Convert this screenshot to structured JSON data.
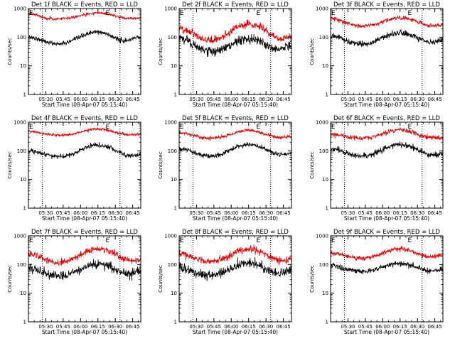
{
  "colors": {
    "events": "#000000",
    "lld": "#dd0000",
    "axes": "#000000",
    "background": "#ffffff"
  },
  "chart_data": [
    {
      "type": "line",
      "title": "Det 1f BLACK = Events, RED = LLD",
      "xlabel": "Start Time (08-Apr-07 05:15:40)",
      "ylabel": "Counts/sec",
      "x_ticks": [
        "05:30",
        "05:45",
        "06:00",
        "06:15",
        "06:30",
        "06:45"
      ],
      "x_tick_min": [
        15,
        30,
        45,
        60,
        75,
        90
      ],
      "xlim_min": [
        0,
        97
      ],
      "y_scale": "log",
      "ylim": [
        1,
        1000
      ],
      "y_ticks": [
        "1",
        "10",
        "100",
        "1000"
      ],
      "vlines_min": [
        12,
        79
      ],
      "markers": [
        {
          "label": "E",
          "min": 0
        },
        {
          "label": "E",
          "min": 66
        }
      ],
      "series": [
        {
          "name": "Events",
          "color": "black",
          "params": {
            "base": 55,
            "bumps": [
              [
                0,
                100,
                10
              ],
              [
                59,
                150,
                12
              ],
              [
                95,
                100,
                6
              ]
            ],
            "noise": 0.04
          }
        },
        {
          "name": "LLD",
          "color": "red",
          "params": {
            "base": 430,
            "bumps": [
              [
                2,
                650,
                6
              ],
              [
                59,
                700,
                12
              ],
              [
                97,
                460,
                5
              ]
            ],
            "noise": 0.025
          }
        }
      ]
    },
    {
      "type": "line",
      "title": "Det 2f BLACK = Events, RED = LLD",
      "xlabel": "Start Time (08-Apr-07 05:15:40)",
      "ylabel": "Counts/sec",
      "x_ticks": [
        "05:30",
        "05:45",
        "06:00",
        "06:15",
        "06:30",
        "06:45"
      ],
      "x_tick_min": [
        15,
        30,
        45,
        60,
        75,
        90
      ],
      "xlim_min": [
        0,
        97
      ],
      "y_scale": "log",
      "ylim": [
        1,
        1000
      ],
      "y_ticks": [
        "1",
        "10",
        "100",
        "1000"
      ],
      "vlines_min": [
        12,
        79
      ],
      "markers": [
        {
          "label": "E",
          "min": 0
        },
        {
          "label": "E",
          "min": 66
        }
      ],
      "series": [
        {
          "name": "Events",
          "color": "black",
          "params": {
            "base": 28,
            "bumps": [
              [
                0,
                90,
                10
              ],
              [
                60,
                90,
                12
              ],
              [
                97,
                55,
                5
              ]
            ],
            "noise": 0.08
          }
        },
        {
          "name": "LLD",
          "color": "red",
          "params": {
            "base": 70,
            "bumps": [
              [
                0,
                200,
                10
              ],
              [
                60,
                280,
                12
              ],
              [
                97,
                100,
                5
              ]
            ],
            "noise": 0.06
          }
        }
      ]
    },
    {
      "type": "line",
      "title": "Det 3f BLACK = Events, RED = LLD",
      "xlabel": "Start Time (08-Apr-07 05:15:40)",
      "ylabel": "Counts/sec",
      "x_ticks": [
        "05:30",
        "05:45",
        "06:00",
        "06:15",
        "06:30",
        "06:45"
      ],
      "x_tick_min": [
        15,
        30,
        45,
        60,
        75,
        90
      ],
      "xlim_min": [
        0,
        97
      ],
      "y_scale": "log",
      "ylim": [
        1,
        1000
      ],
      "y_ticks": [
        "1",
        "10",
        "100",
        "1000"
      ],
      "vlines_min": [
        12,
        79
      ],
      "markers": [
        {
          "label": "E",
          "min": 0
        },
        {
          "label": "E",
          "min": 66
        }
      ],
      "series": [
        {
          "name": "Events",
          "color": "black",
          "params": {
            "base": 55,
            "bumps": [
              [
                0,
                110,
                10
              ],
              [
                60,
                140,
                12
              ],
              [
                97,
                75,
                5
              ]
            ],
            "noise": 0.05
          }
        },
        {
          "name": "LLD",
          "color": "red",
          "params": {
            "base": 230,
            "bumps": [
              [
                0,
                450,
                10
              ],
              [
                60,
                480,
                12
              ],
              [
                97,
                260,
                5
              ]
            ],
            "noise": 0.035
          }
        }
      ]
    },
    {
      "type": "line",
      "title": "Det 4f BLACK = Events, RED = LLD",
      "xlabel": "Start Time (08-Apr-07 05:15:40)",
      "ylabel": "Counts/sec",
      "x_ticks": [
        "05:30",
        "05:45",
        "06:00",
        "06:15",
        "06:30",
        "06:45"
      ],
      "x_tick_min": [
        15,
        30,
        45,
        60,
        75,
        90
      ],
      "xlim_min": [
        0,
        97
      ],
      "y_scale": "log",
      "ylim": [
        1,
        1000
      ],
      "y_ticks": [
        "1",
        "10",
        "100",
        "1000"
      ],
      "vlines_min": [
        12,
        79
      ],
      "markers": [
        {
          "label": "E",
          "min": 0
        },
        {
          "label": "E",
          "min": 66
        }
      ],
      "series": [
        {
          "name": "Events",
          "color": "black",
          "params": {
            "base": 60,
            "bumps": [
              [
                0,
                100,
                10
              ],
              [
                60,
                160,
                12
              ],
              [
                97,
                75,
                5
              ]
            ],
            "noise": 0.04
          }
        },
        {
          "name": "LLD",
          "color": "red",
          "params": {
            "base": 340,
            "bumps": [
              [
                0,
                480,
                10
              ],
              [
                60,
                580,
                12
              ],
              [
                97,
                380,
                5
              ]
            ],
            "noise": 0.025
          }
        }
      ]
    },
    {
      "type": "line",
      "title": "Det 5f BLACK = Events, RED = LLD",
      "xlabel": "Start Time (08-Apr-07 05:15:40)",
      "ylabel": "Counts/sec",
      "x_ticks": [
        "05:30",
        "05:45",
        "06:00",
        "06:15",
        "06:30",
        "06:45"
      ],
      "x_tick_min": [
        15,
        30,
        45,
        60,
        75,
        90
      ],
      "xlim_min": [
        0,
        97
      ],
      "y_scale": "log",
      "ylim": [
        1,
        1000
      ],
      "y_ticks": [
        "1",
        "10",
        "100",
        "1000"
      ],
      "vlines_min": [
        12,
        79
      ],
      "markers": [
        {
          "label": "E",
          "min": 0
        },
        {
          "label": "E",
          "min": 66
        }
      ],
      "series": [
        {
          "name": "Events",
          "color": "black",
          "params": {
            "base": 62,
            "bumps": [
              [
                0,
                120,
                10
              ],
              [
                60,
                170,
                12
              ],
              [
                97,
                80,
                5
              ]
            ],
            "noise": 0.04
          }
        },
        {
          "name": "LLD",
          "color": "red",
          "params": {
            "base": 270,
            "bumps": [
              [
                0,
                420,
                10
              ],
              [
                60,
                520,
                12
              ],
              [
                97,
                310,
                5
              ]
            ],
            "noise": 0.03
          }
        }
      ]
    },
    {
      "type": "line",
      "title": "Det 6f BLACK = Events, RED = LLD",
      "xlabel": "Start Time (08-Apr-07 05:15:40)",
      "ylabel": "Counts/sec",
      "x_ticks": [
        "05:30",
        "05:45",
        "06:00",
        "06:15",
        "06:30",
        "06:45"
      ],
      "x_tick_min": [
        15,
        30,
        45,
        60,
        75,
        90
      ],
      "xlim_min": [
        0,
        97
      ],
      "y_scale": "log",
      "ylim": [
        1,
        1000
      ],
      "y_ticks": [
        "1",
        "10",
        "100",
        "1000"
      ],
      "vlines_min": [
        12,
        79
      ],
      "markers": [
        {
          "label": "E",
          "min": 0
        },
        {
          "label": "E",
          "min": 66
        }
      ],
      "series": [
        {
          "name": "Events",
          "color": "black",
          "params": {
            "base": 62,
            "bumps": [
              [
                0,
                120,
                10
              ],
              [
                60,
                165,
                12
              ],
              [
                97,
                75,
                5
              ]
            ],
            "noise": 0.05
          }
        },
        {
          "name": "LLD",
          "color": "red",
          "params": {
            "base": 270,
            "bumps": [
              [
                0,
                380,
                10
              ],
              [
                60,
                530,
                12
              ],
              [
                97,
                290,
                5
              ]
            ],
            "noise": 0.04
          }
        }
      ]
    },
    {
      "type": "line",
      "title": "Det 7f BLACK = Events, RED = LLD",
      "xlabel": "Start Time (08-Apr-07 05:15:40)",
      "ylabel": "Counts/sec",
      "x_ticks": [
        "05:30",
        "05:45",
        "06:00",
        "06:15",
        "06:30",
        "06:45"
      ],
      "x_tick_min": [
        15,
        30,
        45,
        60,
        75,
        90
      ],
      "xlim_min": [
        0,
        97
      ],
      "y_scale": "log",
      "ylim": [
        1,
        1000
      ],
      "y_ticks": [
        "1",
        "10",
        "100",
        "1000"
      ],
      "vlines_min": [
        12,
        79
      ],
      "markers": [
        {
          "label": "E",
          "min": 0
        },
        {
          "label": "E",
          "min": 66
        }
      ],
      "series": [
        {
          "name": "Events",
          "color": "black",
          "params": {
            "base": 38,
            "bumps": [
              [
                0,
                70,
                10
              ],
              [
                60,
                100,
                12
              ],
              [
                97,
                60,
                5
              ]
            ],
            "noise": 0.08
          }
        },
        {
          "name": "LLD",
          "color": "red",
          "params": {
            "base": 110,
            "bumps": [
              [
                0,
                220,
                10
              ],
              [
                60,
                360,
                12
              ],
              [
                97,
                140,
                5
              ]
            ],
            "noise": 0.06
          }
        }
      ]
    },
    {
      "type": "line",
      "title": "Det 8f BLACK = Events, RED = LLD",
      "xlabel": "Start Time (08-Apr-07 05:15:40)",
      "ylabel": "Counts/sec",
      "x_ticks": [
        "05:30",
        "05:45",
        "06:00",
        "06:15",
        "06:30",
        "06:45"
      ],
      "x_tick_min": [
        15,
        30,
        45,
        60,
        75,
        90
      ],
      "xlim_min": [
        0,
        97
      ],
      "y_scale": "log",
      "ylim": [
        1,
        1000
      ],
      "y_ticks": [
        "1",
        "10",
        "100",
        "1000"
      ],
      "vlines_min": [
        12,
        79
      ],
      "markers": [
        {
          "label": "E",
          "min": 0
        },
        {
          "label": "E",
          "min": 66
        }
      ],
      "series": [
        {
          "name": "Events",
          "color": "black",
          "params": {
            "base": 40,
            "bumps": [
              [
                0,
                75,
                10
              ],
              [
                60,
                110,
                12
              ],
              [
                97,
                65,
                5
              ]
            ],
            "noise": 0.08
          }
        },
        {
          "name": "LLD",
          "color": "red",
          "params": {
            "base": 115,
            "bumps": [
              [
                0,
                240,
                10
              ],
              [
                60,
                350,
                12
              ],
              [
                97,
                150,
                5
              ]
            ],
            "noise": 0.06
          }
        }
      ]
    },
    {
      "type": "line",
      "title": "Det 9f BLACK = Events, RED = LLD",
      "xlabel": "Start Time (08-Apr-07 05:15:40)",
      "ylabel": "Counts/sec",
      "x_ticks": [
        "05:30",
        "05:45",
        "06:00",
        "06:15",
        "06:30",
        "06:45"
      ],
      "x_tick_min": [
        15,
        30,
        45,
        60,
        75,
        90
      ],
      "xlim_min": [
        0,
        97
      ],
      "y_scale": "log",
      "ylim": [
        1,
        1000
      ],
      "y_ticks": [
        "1",
        "10",
        "100",
        "1000"
      ],
      "vlines_min": [
        12,
        79
      ],
      "markers": [
        {
          "label": "E",
          "min": 0
        },
        {
          "label": "E",
          "min": 66
        }
      ],
      "series": [
        {
          "name": "Events",
          "color": "black",
          "params": {
            "base": 55,
            "bumps": [
              [
                0,
                90,
                10
              ],
              [
                60,
                110,
                12
              ],
              [
                97,
                65,
                5
              ]
            ],
            "noise": 0.05
          }
        },
        {
          "name": "LLD",
          "color": "red",
          "params": {
            "base": 160,
            "bumps": [
              [
                0,
                260,
                10
              ],
              [
                60,
                350,
                12
              ],
              [
                97,
                210,
                5
              ]
            ],
            "noise": 0.04
          }
        }
      ]
    }
  ]
}
